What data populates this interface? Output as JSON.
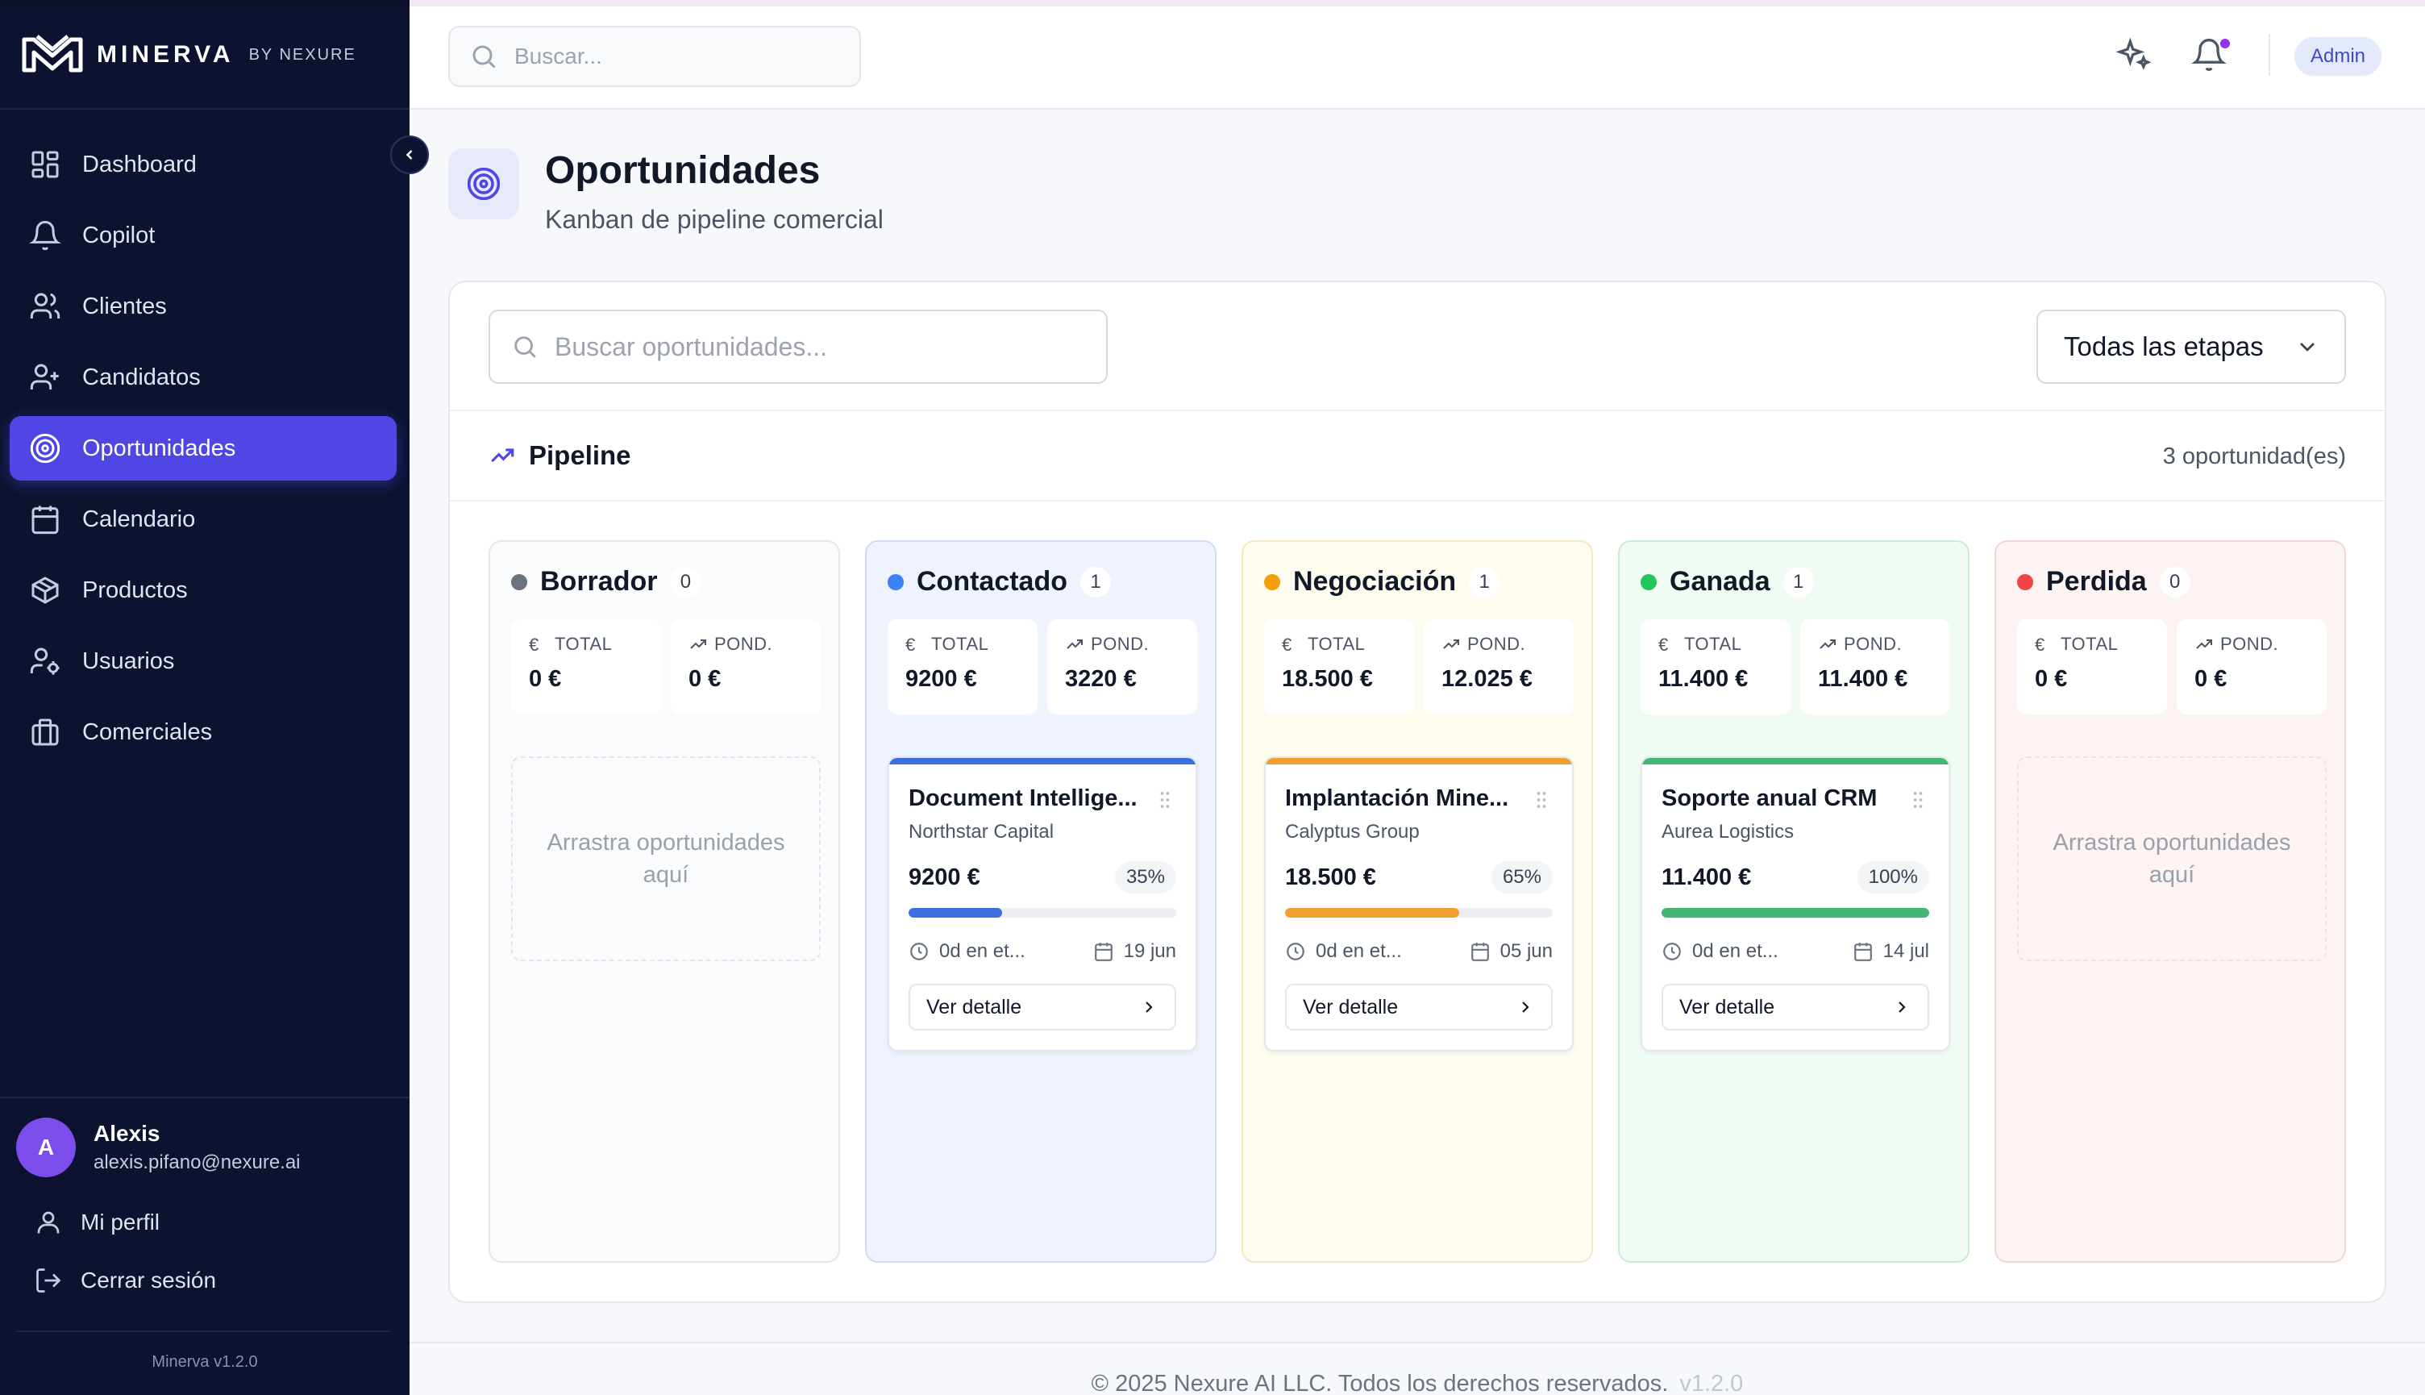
{
  "brand": {
    "name": "MINERVA",
    "sub": "BY NEXURE",
    "version": "Minerva v1.2.0"
  },
  "nav": [
    {
      "label": "Dashboard",
      "icon": "dashboard-icon"
    },
    {
      "label": "Copilot",
      "icon": "bell-icon"
    },
    {
      "label": "Clientes",
      "icon": "users-icon"
    },
    {
      "label": "Candidatos",
      "icon": "user-plus-icon"
    },
    {
      "label": "Oportunidades",
      "icon": "target-icon",
      "active": true
    },
    {
      "label": "Calendario",
      "icon": "calendar-icon"
    },
    {
      "label": "Productos",
      "icon": "package-icon"
    },
    {
      "label": "Usuarios",
      "icon": "user-cog-icon"
    },
    {
      "label": "Comerciales",
      "icon": "briefcase-icon"
    }
  ],
  "user": {
    "initial": "A",
    "name": "Alexis",
    "email": "alexis.pifano@nexure.ai",
    "profile_label": "Mi perfil",
    "logout_label": "Cerrar sesión"
  },
  "topbar": {
    "search_placeholder": "Buscar...",
    "role": "Admin"
  },
  "page": {
    "title": "Oportunidades",
    "subtitle": "Kanban de pipeline comercial"
  },
  "filters": {
    "search_placeholder": "Buscar oportunidades...",
    "stage_selected": "Todas las etapas"
  },
  "pipeline": {
    "title": "Pipeline",
    "count_label": "3 oportunidad(es)"
  },
  "labels": {
    "total": "TOTAL",
    "pond": "POND.",
    "drop": "Arrastra oportunidades aquí",
    "detail": "Ver detalle"
  },
  "columns": [
    {
      "name": "Borrador",
      "count": "0",
      "total": "0 €",
      "pond": "0 €",
      "dot": "#6b7280",
      "bg": "#fafbfc",
      "border": "#e5e7eb"
    },
    {
      "name": "Contactado",
      "count": "1",
      "total": "9200 €",
      "pond": "3220 €",
      "dot": "#3b82f6",
      "bg": "#eef3fd",
      "border": "#cfdcf5",
      "card": {
        "title": "Document Intellige...",
        "client": "Northstar Capital",
        "amount": "9200 €",
        "pct": "35%",
        "progress": 0.35,
        "time": "0d en et...",
        "date": "19 jun",
        "color": "#3b6fe0"
      }
    },
    {
      "name": "Negociación",
      "count": "1",
      "total": "18.500 €",
      "pond": "12.025 €",
      "dot": "#f59e0b",
      "bg": "#fefcef",
      "border": "#f3e8bf",
      "card": {
        "title": "Implantación Mine...",
        "client": "Calyptus Group",
        "amount": "18.500 €",
        "pct": "65%",
        "progress": 0.65,
        "time": "0d en et...",
        "date": "05 jun",
        "color": "#f0a030"
      }
    },
    {
      "name": "Ganada",
      "count": "1",
      "total": "11.400 €",
      "pond": "11.400 €",
      "dot": "#22c55e",
      "bg": "#effbf3",
      "border": "#c9ecd5",
      "card": {
        "title": "Soporte anual CRM",
        "client": "Aurea Logistics",
        "amount": "11.400 €",
        "pct": "100%",
        "progress": 1.0,
        "time": "0d en et...",
        "date": "14 jul",
        "color": "#43b673"
      }
    },
    {
      "name": "Perdida",
      "count": "0",
      "total": "0 €",
      "pond": "0 €",
      "dot": "#ef4444",
      "bg": "#fdf3f2",
      "border": "#f3d6d4"
    }
  ],
  "footer": {
    "text": "© 2025 Nexure AI LLC. Todos los derechos reservados.",
    "version": "v1.2.0"
  }
}
